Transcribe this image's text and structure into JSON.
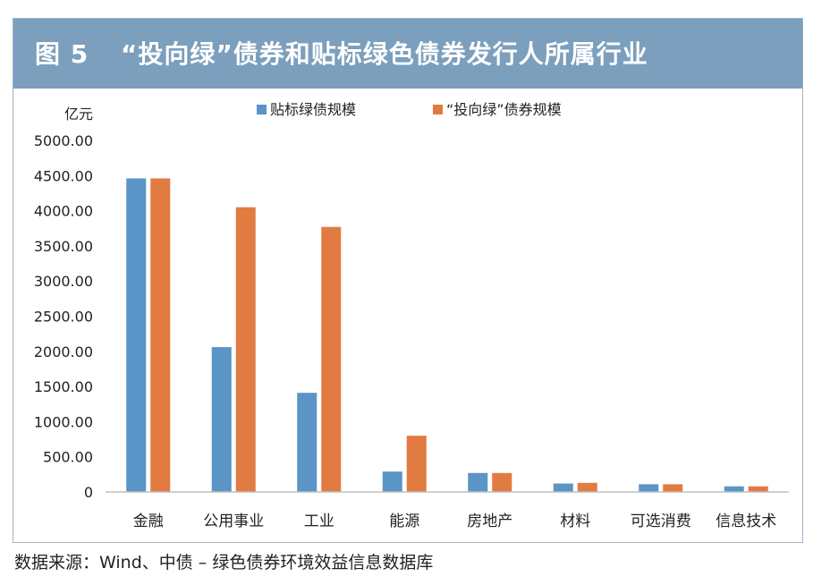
{
  "figure": {
    "label": "图 5",
    "title": "“投向绿”债券和贴标绿色债券发行人所属行业"
  },
  "source": "数据来源：Wind、中债 – 绿色债券环境效益信息数据库",
  "chart_data": {
    "type": "bar",
    "title": "“投向绿”债券和贴标绿色债券发行人所属行业",
    "ylabel": "亿元",
    "xlabel": "",
    "ylim": [
      0,
      5000
    ],
    "yticks": [
      0,
      500,
      1000,
      1500,
      2000,
      2500,
      3000,
      3500,
      4000,
      4500,
      5000
    ],
    "ytick_labels": [
      "0",
      "500.00",
      "1000.00",
      "1500.00",
      "2000.00",
      "2500.00",
      "3000.00",
      "3500.00",
      "4000.00",
      "4500.00",
      "5000.00"
    ],
    "categories": [
      "金融",
      "公用事业",
      "工业",
      "能源",
      "房地产",
      "材料",
      "可选消费",
      "信息技术"
    ],
    "series": [
      {
        "name": "贴标绿债规模",
        "color": "#5b94c6",
        "values": [
          4460,
          2060,
          1410,
          290,
          270,
          120,
          110,
          80
        ]
      },
      {
        "name": "“投向绿”债券规模",
        "color": "#e27b41",
        "values": [
          4460,
          4050,
          3770,
          800,
          270,
          130,
          110,
          80
        ]
      }
    ],
    "legend": "top-center",
    "grid": false
  }
}
